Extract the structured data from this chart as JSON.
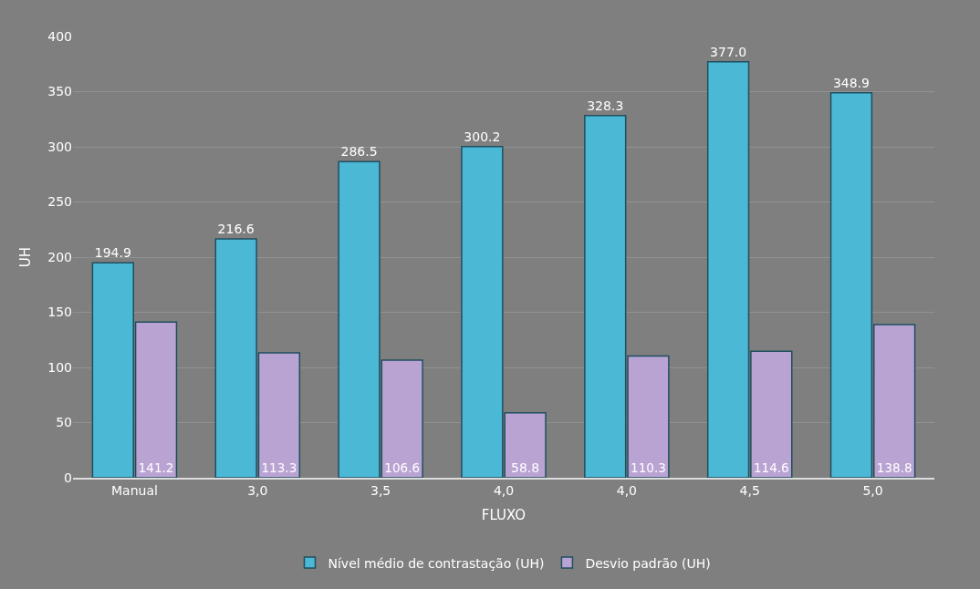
{
  "chart_data": {
    "type": "bar",
    "xlabel": "FLUXO",
    "ylabel": "UH",
    "categories": [
      "Manual",
      "3,0",
      "3,5",
      "4,0",
      "4,0",
      "4,5",
      "5,0"
    ],
    "series": [
      {
        "name": "Nível médio de contrastação (UH)",
        "color": "#4bb8d6",
        "values": [
          194.9,
          216.6,
          286.5,
          300.2,
          328.3,
          377.0,
          348.9
        ],
        "value_labels": [
          "194.9",
          "216.6",
          "286.5",
          "300.2",
          "328.3",
          "377.0",
          "348.9"
        ]
      },
      {
        "name": "Desvio padrão (UH)",
        "color": "#b9a3d3",
        "values": [
          141.2,
          113.3,
          106.6,
          58.8,
          110.3,
          114.6,
          138.8
        ],
        "value_labels": [
          "141.2",
          "113.3",
          "106.6",
          "58.8",
          "110.3",
          "114.6",
          "138.8"
        ]
      }
    ],
    "ylim": [
      0,
      400
    ],
    "yticks": [
      0,
      50,
      100,
      150,
      200,
      250,
      300,
      350,
      400
    ],
    "grid": "y",
    "legend": "bottom"
  }
}
